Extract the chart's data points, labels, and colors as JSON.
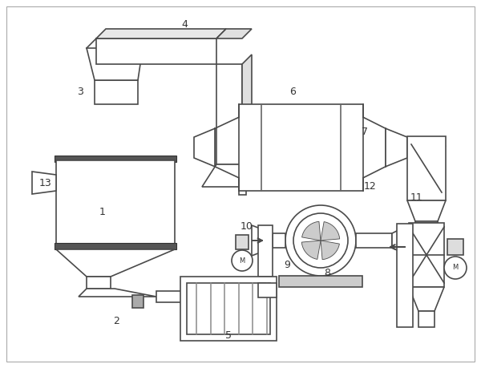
{
  "bg": "#ffffff",
  "lc": "#4a4a4a",
  "lw": 1.2,
  "fig_w": 6.0,
  "fig_h": 4.59,
  "dpi": 100
}
